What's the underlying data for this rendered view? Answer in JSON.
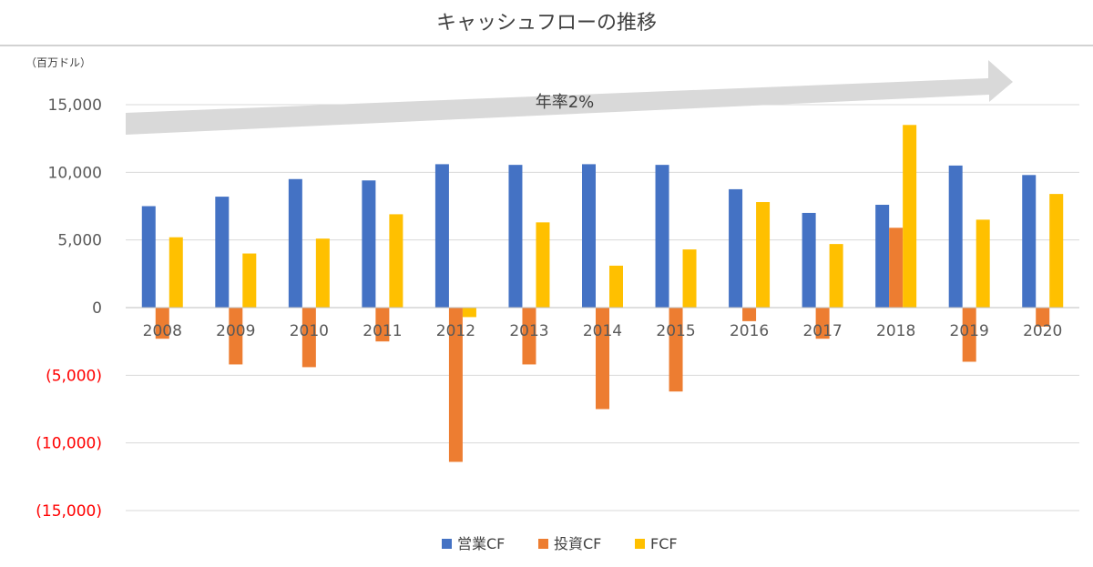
{
  "chart_data": {
    "type": "bar",
    "title": "キャッシュフローの推移",
    "unit_label": "（百万ドル）",
    "categories": [
      "2008",
      "2009",
      "2010",
      "2011",
      "2012",
      "2013",
      "2014",
      "2015",
      "2016",
      "2017",
      "2018",
      "2019",
      "2020"
    ],
    "series": [
      {
        "name": "営業CF",
        "color": "#4472C4",
        "values": [
          7500,
          8200,
          9500,
          9400,
          10600,
          10550,
          10600,
          10550,
          8750,
          7000,
          7600,
          10500,
          9800
        ]
      },
      {
        "name": "投資CF",
        "color": "#ED7D31",
        "values": [
          -2300,
          -4200,
          -4400,
          -2500,
          -11400,
          -4200,
          -7500,
          -6200,
          -1000,
          -2300,
          5900,
          -4000,
          -1400
        ]
      },
      {
        "name": "FCF",
        "color": "#FFC000",
        "values": [
          5200,
          4000,
          5100,
          6900,
          -700,
          6300,
          3100,
          4300,
          7800,
          4700,
          13500,
          6500,
          8400
        ]
      }
    ],
    "ylim": [
      -15000,
      15000
    ],
    "yticks": [
      {
        "value": 15000,
        "label": "15,000"
      },
      {
        "value": 10000,
        "label": "10,000"
      },
      {
        "value": 5000,
        "label": "5,000"
      },
      {
        "value": 0,
        "label": "0"
      },
      {
        "value": -5000,
        "label": "(5,000)"
      },
      {
        "value": -10000,
        "label": "(10,000)"
      },
      {
        "value": -15000,
        "label": "(15,000)"
      }
    ],
    "grid": true,
    "legend_position": "bottom",
    "annotation": "年率2%",
    "colors": {
      "tick_positive": "#595959",
      "tick_negative": "#FF0000",
      "grid": "#D9D9D9",
      "arrow": "#D9D9D9",
      "axis": "#BFBFBF"
    }
  }
}
